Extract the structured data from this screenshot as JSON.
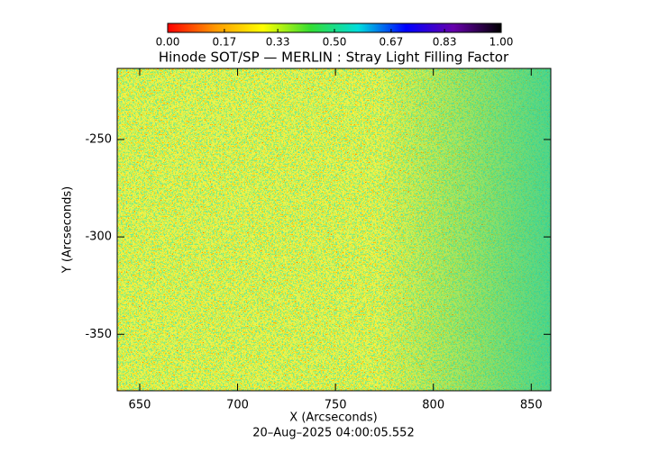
{
  "chart_data": {
    "type": "heatmap",
    "title": "Hinode SOT/SP — MERLIN : Stray Light Filling Factor",
    "x_label": "X (Arcseconds)",
    "y_label": "Y (Arcseconds)",
    "timestamp": "20–Aug–2025 04:00:05.552",
    "xlim": [
      638.5,
      860
    ],
    "ylim": [
      -379,
      -213.5
    ],
    "xticks": [
      650,
      700,
      750,
      800,
      850
    ],
    "yticks": [
      -250,
      -300,
      -350
    ],
    "colorbar": {
      "lim": [
        0,
        1
      ],
      "ticks": [
        {
          "value": 0,
          "label": "0.00"
        },
        {
          "value": 0.17,
          "label": "0.17"
        },
        {
          "value": 0.33,
          "label": "0.33"
        },
        {
          "value": 0.5,
          "label": "0.50"
        },
        {
          "value": 0.67,
          "label": "0.67"
        },
        {
          "value": 0.83,
          "label": "0.83"
        },
        {
          "value": 1,
          "label": "1.00"
        }
      ],
      "colors": [
        "#ff0000",
        "#ff9900",
        "#ffff00",
        "#33dd33",
        "#00dddd",
        "#0000ff",
        "#6600aa",
        "#000000"
      ]
    }
  }
}
